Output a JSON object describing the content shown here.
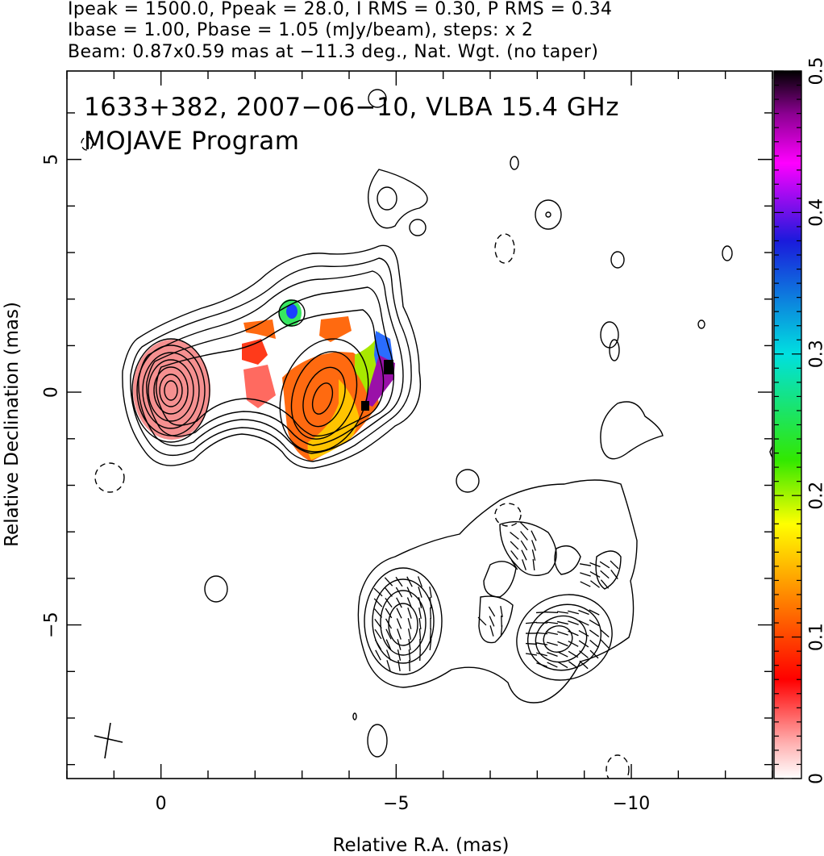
{
  "header": {
    "line1": "Ipeak = 1500.0, Ppeak = 28.0, I RMS = 0.30, P RMS = 0.34",
    "line2": "Ibase = 1.00, Pbase = 1.05 (mJy/beam), steps: x 2",
    "line3": "Beam: 0.87x0.59 mas at −11.3 deg., Nat. Wgt. (no taper)"
  },
  "plot": {
    "title_line1": "1633+382, 2007−06−10, VLBA 15.4 GHz",
    "title_line2": "MOJAVE Program"
  },
  "chart_data": {
    "type": "heatmap",
    "title": "1633+382, 2007−06−10, VLBA 15.4 GHz",
    "subtitle": "MOJAVE Program",
    "xlabel": "Relative R.A. (mas)",
    "ylabel": "Relative Declination (mas)",
    "xlim": [
      2.0,
      -13.0
    ],
    "ylim": [
      -8.3,
      6.9
    ],
    "x_ticks": [
      0,
      -5,
      -10
    ],
    "x_tick_labels": [
      "0",
      "−5",
      "−10"
    ],
    "y_ticks": [
      -5,
      0,
      5
    ],
    "y_tick_labels": [
      "−5",
      "0",
      "5"
    ],
    "colorbar": {
      "min": 0,
      "max": 0.5,
      "ticks": [
        0,
        0.1,
        0.2,
        0.3,
        0.4,
        0.5
      ],
      "tick_labels": [
        "0",
        "0.1",
        "0.2",
        "0.3",
        "0.4",
        "0.5"
      ]
    },
    "contour_levels_mJy_per_beam": [
      1.0,
      2.0,
      4.0,
      8.0,
      16.0,
      32.0,
      64.0,
      128,
      256,
      512,
      1024
    ],
    "components": [
      {
        "x": 0.0,
        "y": 0.0,
        "fractional_polarization": 0.03
      },
      {
        "x": -3.2,
        "y": 0.0,
        "fractional_polarization": 0.12
      },
      {
        "x": -2.6,
        "y": 1.8,
        "fractional_polarization": 0.3
      },
      {
        "x": -4.9,
        "y": -4.9,
        "fractional_polarization": 0
      },
      {
        "x": -8.2,
        "y": -5.2,
        "fractional_polarization": 0
      }
    ]
  },
  "colors": {
    "frame": "#000000",
    "background": "#ffffff"
  }
}
